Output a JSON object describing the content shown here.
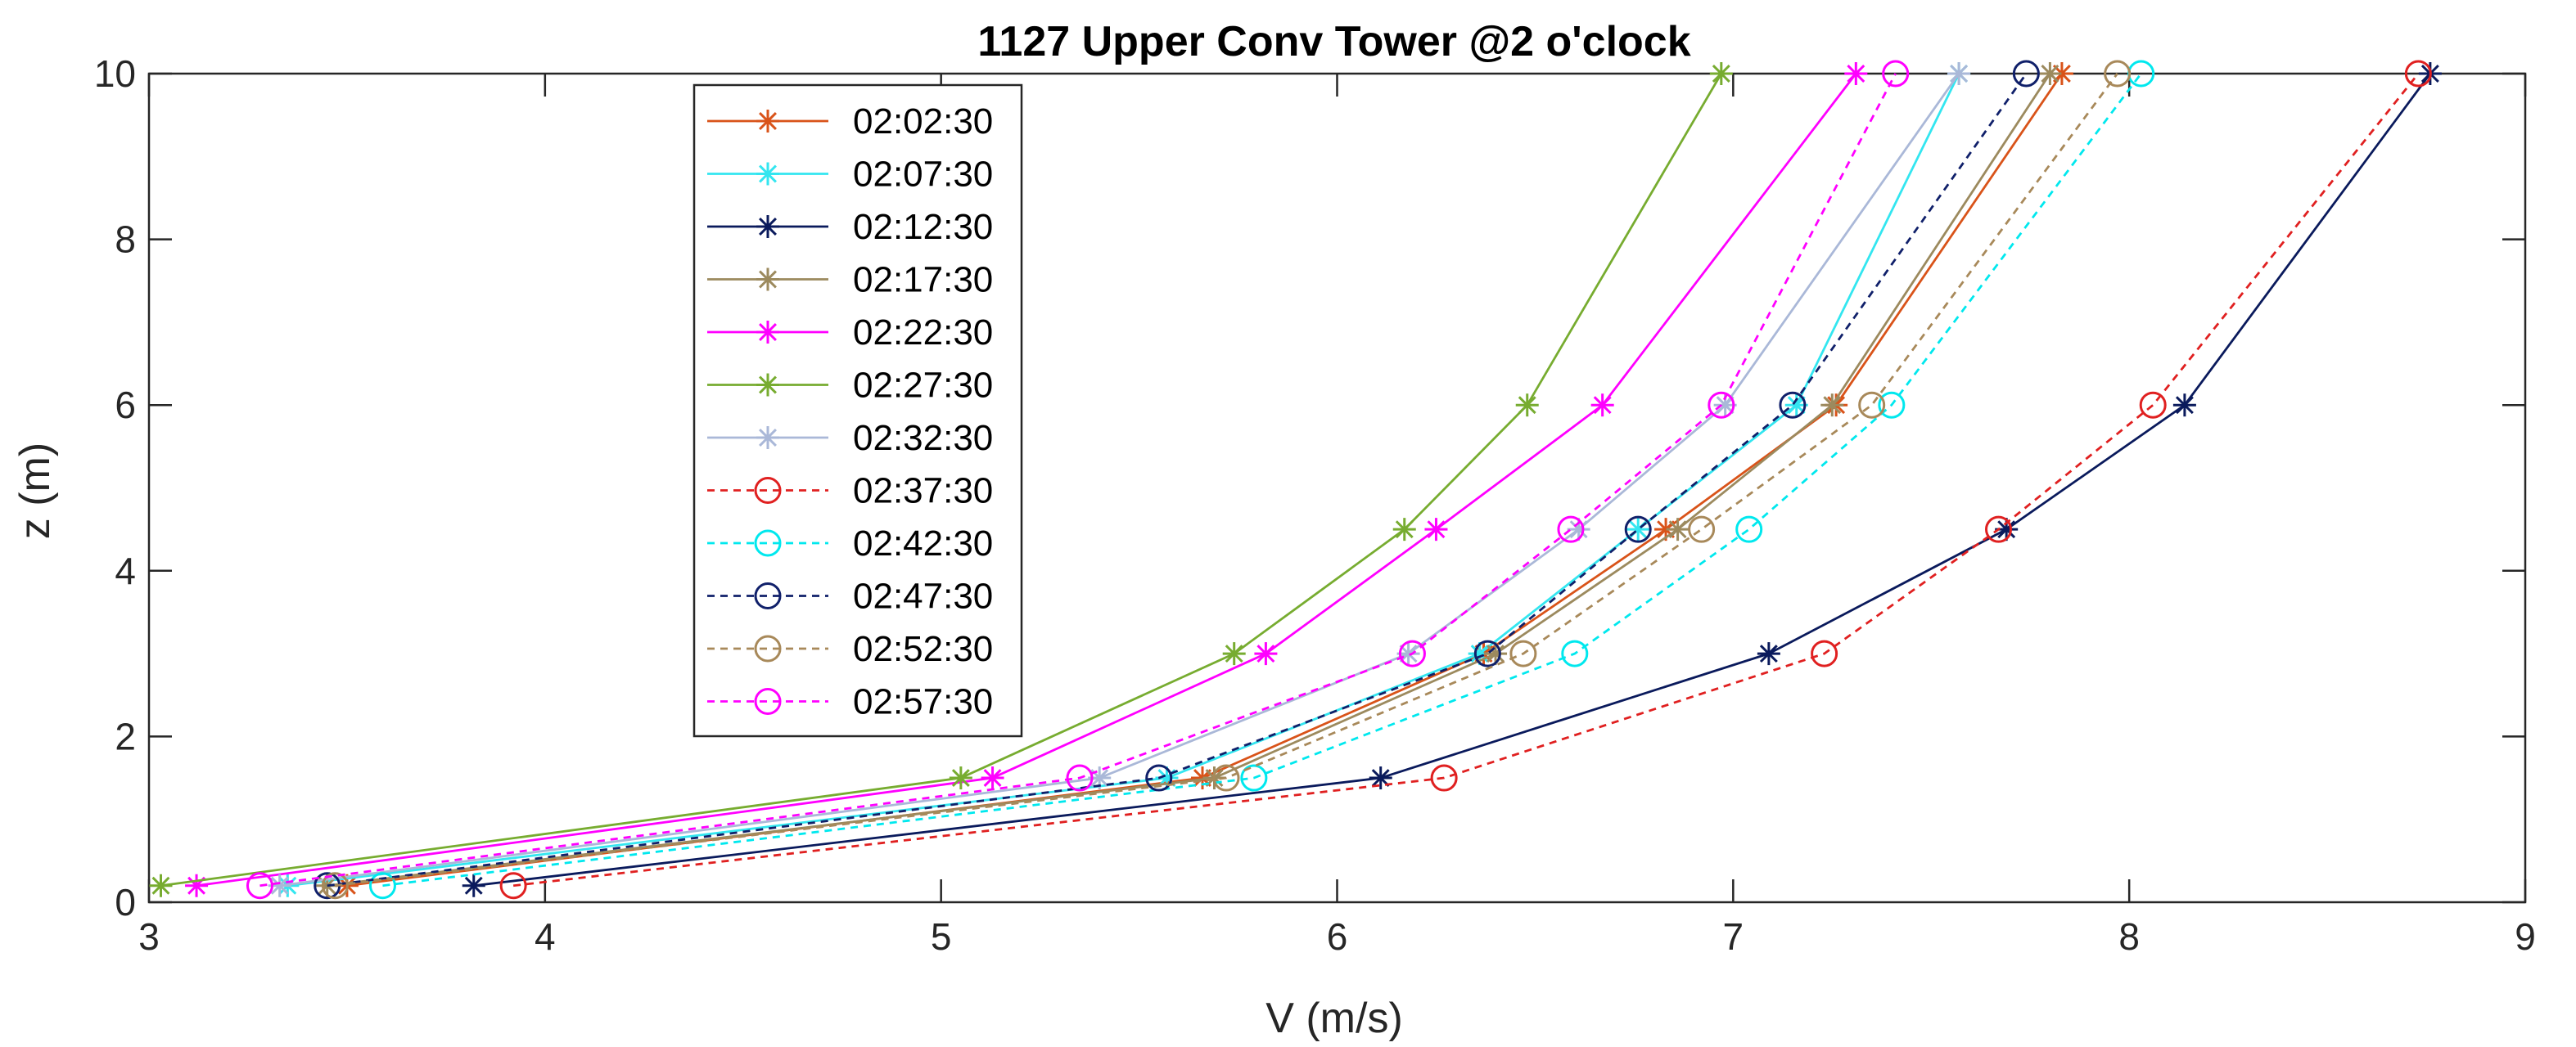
{
  "chart_data": {
    "type": "line",
    "title": "1127 Upper Conv Tower @2 o'clock",
    "xlabel": "V (m/s)",
    "ylabel": "z (m)",
    "xlim": [
      3,
      9
    ],
    "ylim": [
      0,
      10
    ],
    "xticks": [
      "3",
      "4",
      "5",
      "6",
      "7",
      "8",
      "9"
    ],
    "yticks": [
      "0",
      "2",
      "4",
      "6",
      "8",
      "10"
    ],
    "grid": false,
    "legend_position": "top-left-inside",
    "z": [
      0.2,
      1.5,
      3,
      4.5,
      6,
      10
    ],
    "series": [
      {
        "name": "02:02:30",
        "color": "#d95319",
        "marker": "star",
        "dash": "solid",
        "v": [
          3.5,
          5.66,
          6.37,
          6.83,
          7.26,
          7.83
        ]
      },
      {
        "name": "02:07:30",
        "color": "#33e6f0",
        "marker": "star",
        "dash": "solid",
        "v": [
          3.35,
          5.57,
          6.36,
          6.76,
          7.16,
          7.57
        ]
      },
      {
        "name": "02:12:30",
        "color": "#0a1a5c",
        "marker": "star",
        "dash": "solid",
        "v": [
          3.82,
          6.11,
          7.09,
          7.69,
          8.14,
          8.76
        ]
      },
      {
        "name": "02:17:30",
        "color": "#9c8a5e",
        "marker": "star",
        "dash": "solid",
        "v": [
          3.45,
          5.69,
          6.4,
          6.86,
          7.25,
          7.8
        ]
      },
      {
        "name": "02:22:30",
        "color": "#ff00ff",
        "marker": "star",
        "dash": "solid",
        "v": [
          3.12,
          5.13,
          5.82,
          6.25,
          6.67,
          7.31
        ]
      },
      {
        "name": "02:27:30",
        "color": "#77ac30",
        "marker": "star",
        "dash": "solid",
        "v": [
          3.03,
          5.05,
          5.74,
          6.17,
          6.48,
          6.97
        ]
      },
      {
        "name": "02:32:30",
        "color": "#aab8d8",
        "marker": "star",
        "dash": "solid",
        "v": [
          3.33,
          5.4,
          6.18,
          6.61,
          6.98,
          7.57
        ]
      },
      {
        "name": "02:37:30",
        "color": "#e02020",
        "marker": "circle",
        "dash": "dashed",
        "v": [
          3.92,
          6.27,
          7.23,
          7.67,
          8.06,
          8.73
        ]
      },
      {
        "name": "02:42:30",
        "color": "#00e8ee",
        "marker": "circle",
        "dash": "dashed",
        "v": [
          3.59,
          5.79,
          6.6,
          7.04,
          7.4,
          8.03
        ]
      },
      {
        "name": "02:47:30",
        "color": "#10206a",
        "marker": "circle",
        "dash": "dashed",
        "v": [
          3.45,
          5.55,
          6.38,
          6.76,
          7.15,
          7.74
        ]
      },
      {
        "name": "02:52:30",
        "color": "#a8895a",
        "marker": "circle",
        "dash": "dashed",
        "v": [
          3.47,
          5.72,
          6.47,
          6.92,
          7.35,
          7.97
        ]
      },
      {
        "name": "02:57:30",
        "color": "#ff00ff",
        "marker": "circle",
        "dash": "dashed",
        "v": [
          3.28,
          5.35,
          6.19,
          6.59,
          6.97,
          7.41
        ]
      }
    ]
  }
}
